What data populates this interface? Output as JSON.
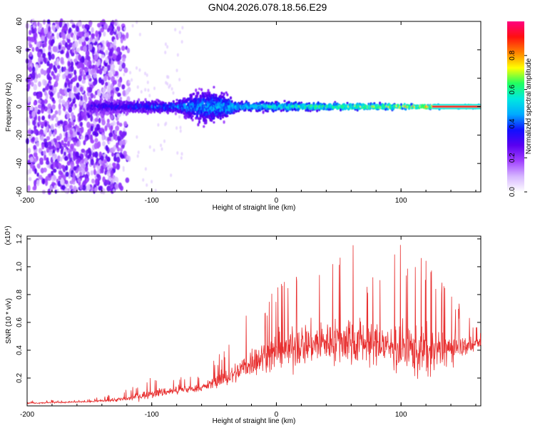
{
  "figure_title": "GN04.2026.078.18.56.E29",
  "chart_data": [
    {
      "type": "heatmap",
      "title": "GN04.2026.078.18.56.E29",
      "xlabel": "Height of straight line (km)",
      "ylabel": "Frequency (Hz)",
      "xlim": [
        -200,
        164
      ],
      "ylim": [
        -60,
        60
      ],
      "xticks": [
        -200,
        -100,
        0,
        100
      ],
      "yticks": [
        -60,
        -40,
        -20,
        0,
        20,
        40,
        60
      ],
      "colorbar": {
        "label": "Normalized spectral amplitude",
        "range": [
          0,
          1
        ],
        "ticks": [
          "0.0",
          "0.2",
          "0.4",
          "0.6",
          "0.8"
        ],
        "colors": [
          "#ffffff",
          "#d6b6ff",
          "#a040ff",
          "#5a00f0",
          "#1010ff",
          "#00aaff",
          "#00e8e0",
          "#20ff60",
          "#ffff00",
          "#ff8000",
          "#ff1010",
          "#ff0080"
        ]
      },
      "features": [
        {
          "name": "broadband noise region",
          "x_range": [
            -200,
            -118
          ],
          "freq_range": [
            -60,
            60
          ],
          "amplitude": 0.25
        },
        {
          "name": "tone band",
          "x_range": [
            -150,
            164
          ],
          "center_freq": 0,
          "amplitude_start": 0.35,
          "amplitude_end": 0.95
        },
        {
          "name": "band broadening",
          "x_range": [
            -80,
            -30
          ],
          "freq_spread": 12
        }
      ]
    },
    {
      "type": "line",
      "xlabel": "Height of straight line (km)",
      "ylabel": "SNR (10 * v/v)",
      "scale_label": "(x10⁴)",
      "xlim": [
        -200,
        164
      ],
      "ylim": [
        0,
        1.22
      ],
      "xticks": [
        -200,
        -100,
        0,
        100
      ],
      "yticks": [
        "0.2",
        "0.4",
        "0.6",
        "0.8",
        "1.0",
        "1.2"
      ],
      "series": [
        {
          "name": "SNR",
          "color": "#e83030",
          "envelope": {
            "x": [
              -200,
              -150,
              -120,
              -100,
              -60,
              -35,
              -20,
              0,
              20,
              40,
              60,
              80,
              100,
              120,
              164
            ],
            "mean": [
              0.02,
              0.03,
              0.05,
              0.09,
              0.13,
              0.22,
              0.32,
              0.38,
              0.44,
              0.46,
              0.48,
              0.44,
              0.42,
              0.38,
              0.45
            ],
            "max": [
              0.04,
              0.05,
              0.12,
              0.22,
              0.22,
              0.5,
              0.72,
              0.88,
              1.03,
              1.0,
              1.22,
              0.95,
              1.17,
              1.05,
              0.55
            ]
          }
        }
      ]
    }
  ]
}
